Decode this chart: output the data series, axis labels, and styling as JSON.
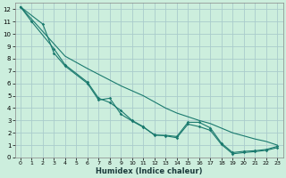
{
  "xlabel": "Humidex (Indice chaleur)",
  "bg_color": "#cceedd",
  "line_color": "#1a7a6e",
  "grid_color": "#aacccc",
  "xlim": [
    -0.5,
    23.5
  ],
  "ylim": [
    0,
    12.5
  ],
  "xticks": [
    0,
    1,
    2,
    3,
    4,
    5,
    6,
    7,
    8,
    9,
    10,
    11,
    12,
    13,
    14,
    15,
    16,
    17,
    18,
    19,
    20,
    21,
    22,
    23
  ],
  "yticks": [
    0,
    1,
    2,
    3,
    4,
    5,
    6,
    7,
    8,
    9,
    10,
    11,
    12
  ],
  "lA_x": [
    0,
    1,
    3,
    4,
    6,
    7,
    8,
    9,
    10,
    11,
    12,
    13,
    14,
    15,
    16,
    17,
    18,
    19,
    20,
    21,
    22,
    23
  ],
  "lA_y": [
    12.2,
    11.0,
    8.8,
    7.5,
    6.1,
    4.8,
    4.45,
    3.8,
    3.0,
    2.5,
    1.8,
    1.8,
    1.7,
    2.85,
    2.85,
    2.4,
    1.15,
    0.4,
    0.5,
    0.55,
    0.65,
    0.9
  ],
  "lB_x": [
    0,
    2,
    3,
    4,
    6,
    7,
    8,
    9,
    10,
    11,
    12,
    13,
    14,
    15,
    16,
    17,
    18,
    19,
    20,
    21,
    22,
    23
  ],
  "lB_y": [
    12.2,
    10.8,
    8.45,
    7.4,
    6.0,
    4.65,
    4.8,
    3.5,
    2.95,
    2.45,
    1.85,
    1.75,
    1.6,
    2.7,
    2.5,
    2.2,
    1.05,
    0.3,
    0.4,
    0.48,
    0.58,
    0.8
  ],
  "lC_x": [
    0,
    4,
    6,
    9,
    11,
    13,
    14,
    15,
    16,
    17,
    19,
    21,
    22,
    23
  ],
  "lC_y": [
    12.2,
    8.2,
    7.2,
    5.8,
    5.0,
    4.0,
    3.6,
    3.3,
    3.0,
    2.75,
    2.0,
    1.5,
    1.3,
    1.0
  ],
  "xlabel_fontsize": 6,
  "tick_fontsize": 5
}
